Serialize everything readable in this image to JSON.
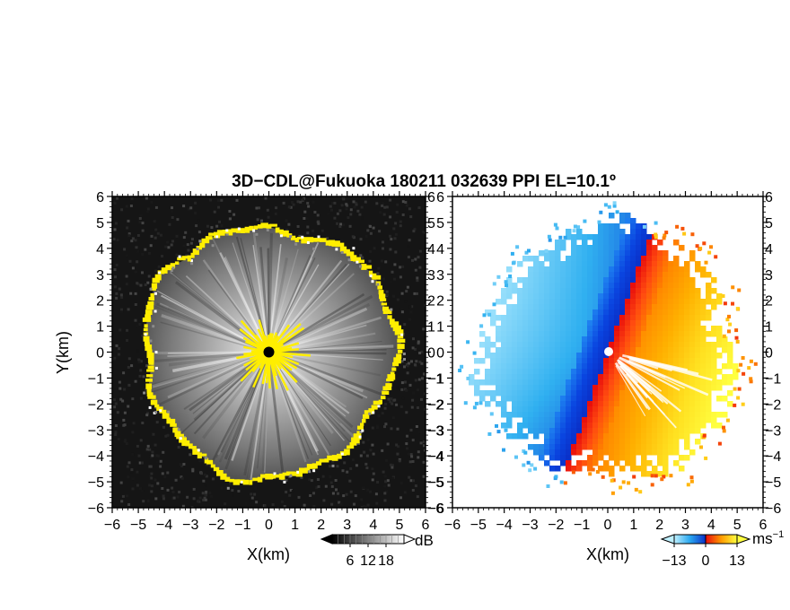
{
  "title": "3D−CDL@Fukuoka 180211 032639 PPI EL=10.1º",
  "chart_data": [
    {
      "type": "heatmap",
      "panel": "reflectivity",
      "xlabel": "X(km)",
      "ylabel": "Y(km)",
      "xlim": [
        -6,
        6
      ],
      "ylim": [
        -6,
        6
      ],
      "xticks": [
        "−6",
        "−5",
        "−4",
        "−3",
        "−2",
        "−1",
        "0",
        "1",
        "2",
        "3",
        "4",
        "5",
        "6"
      ],
      "yticks": [
        "6",
        "5",
        "4",
        "3",
        "2",
        "1",
        "0",
        "−1",
        "−2",
        "−3",
        "−4",
        "−5",
        "−6"
      ],
      "colorbar": {
        "unit": "dB",
        "tick_labels": [
          "6",
          "12",
          "18"
        ],
        "range": [
          0,
          24
        ],
        "colors": [
          "#000000",
          "#ffffff"
        ]
      },
      "echo_radius_km": 4.8,
      "highlight_color": "#ffee00",
      "center_marker_color": "#000000",
      "background_color": "#151515"
    },
    {
      "type": "heatmap",
      "panel": "doppler-velocity",
      "xlabel": "X(km)",
      "xlim": [
        -6,
        6
      ],
      "ylim": [
        -6,
        6
      ],
      "xticks": [
        "−6",
        "−5",
        "−4",
        "−3",
        "−2",
        "−1",
        "0",
        "1",
        "2",
        "3",
        "4",
        "5",
        "6"
      ],
      "yticks": [
        "6",
        "5",
        "4",
        "3",
        "2",
        "1",
        "0",
        "−1",
        "−2",
        "−3",
        "−4",
        "−5",
        "−6"
      ],
      "colorbar": {
        "unit": "ms",
        "unit_exponent": "−1",
        "tick_labels": [
          "−13",
          "0",
          "13"
        ],
        "range": [
          -13,
          13
        ]
      },
      "echo_radius_km": 5.0,
      "colors": {
        "negative": [
          "#0a35d6",
          "#30b0f0",
          "#b8eeff"
        ],
        "positive": [
          "#ffff30",
          "#ff9a00",
          "#ee1010"
        ]
      }
    }
  ]
}
